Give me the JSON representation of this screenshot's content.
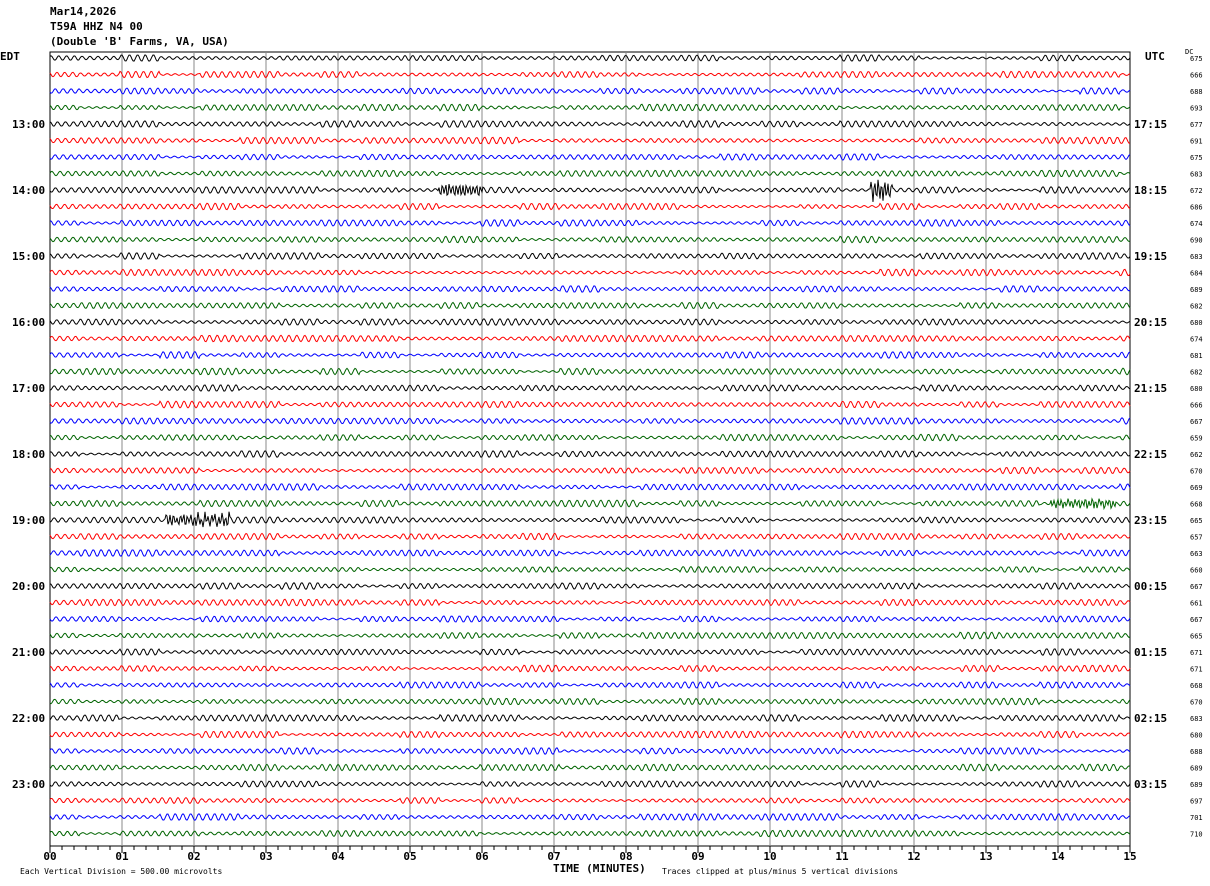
{
  "header": {
    "date": "Mar14,2026",
    "station": "T59A HHZ N4 00",
    "location": "(Double 'B' Farms, VA, USA)"
  },
  "left_tz": "EDT",
  "right_tz": "UTC",
  "dc_label": "DC",
  "footer": {
    "scale": "Each Vertical Division =  500.00 microvolts",
    "xlabel": "TIME (MINUTES)",
    "clip": "Traces clipped at plus/minus 5 vertical divisions"
  },
  "chart_data": {
    "type": "line",
    "title": "T59A HHZ N4 00 helicorder",
    "xlabel": "TIME (MINUTES)",
    "xlim": [
      0,
      15
    ],
    "x_ticks": [
      "00",
      "01",
      "02",
      "03",
      "04",
      "05",
      "06",
      "07",
      "08",
      "09",
      "10",
      "11",
      "12",
      "13",
      "14",
      "15"
    ],
    "trace_colors": [
      "#000000",
      "#ff0000",
      "#0000ff",
      "#006400"
    ],
    "left_labels": [
      {
        "row": 4,
        "text": "13:00"
      },
      {
        "row": 8,
        "text": "14:00"
      },
      {
        "row": 12,
        "text": "15:00"
      },
      {
        "row": 16,
        "text": "16:00"
      },
      {
        "row": 20,
        "text": "17:00"
      },
      {
        "row": 24,
        "text": "18:00"
      },
      {
        "row": 28,
        "text": "19:00"
      },
      {
        "row": 32,
        "text": "20:00"
      },
      {
        "row": 36,
        "text": "21:00"
      },
      {
        "row": 40,
        "text": "22:00"
      },
      {
        "row": 44,
        "text": "23:00"
      }
    ],
    "right_labels": [
      {
        "row": 4,
        "text": "17:15"
      },
      {
        "row": 8,
        "text": "18:15"
      },
      {
        "row": 12,
        "text": "19:15"
      },
      {
        "row": 16,
        "text": "20:15"
      },
      {
        "row": 20,
        "text": "21:15"
      },
      {
        "row": 24,
        "text": "22:15"
      },
      {
        "row": 28,
        "text": "23:15"
      },
      {
        "row": 32,
        "text": "00:15"
      },
      {
        "row": 36,
        "text": "01:15"
      },
      {
        "row": 40,
        "text": "02:15"
      },
      {
        "row": 44,
        "text": "03:15"
      }
    ],
    "dc_offsets": [
      675,
      666,
      688,
      693,
      677,
      691,
      675,
      683,
      672,
      686,
      674,
      690,
      683,
      684,
      689,
      682,
      680,
      674,
      681,
      682,
      680,
      666,
      667,
      659,
      662,
      670,
      669,
      668,
      665,
      657,
      663,
      660,
      667,
      661,
      667,
      665,
      671,
      671,
      668,
      670,
      683,
      680,
      688,
      689,
      689,
      697,
      701,
      710
    ],
    "events": [
      {
        "row": 8,
        "start_min": 5.4,
        "end_min": 6.0,
        "amp": 3
      },
      {
        "row": 8,
        "start_min": 11.4,
        "end_min": 11.7,
        "amp": 5
      },
      {
        "row": 27,
        "start_min": 13.9,
        "end_min": 14.8,
        "amp": 2.2
      },
      {
        "row": 28,
        "start_min": 1.6,
        "end_min": 2.5,
        "amp": 3
      }
    ]
  }
}
